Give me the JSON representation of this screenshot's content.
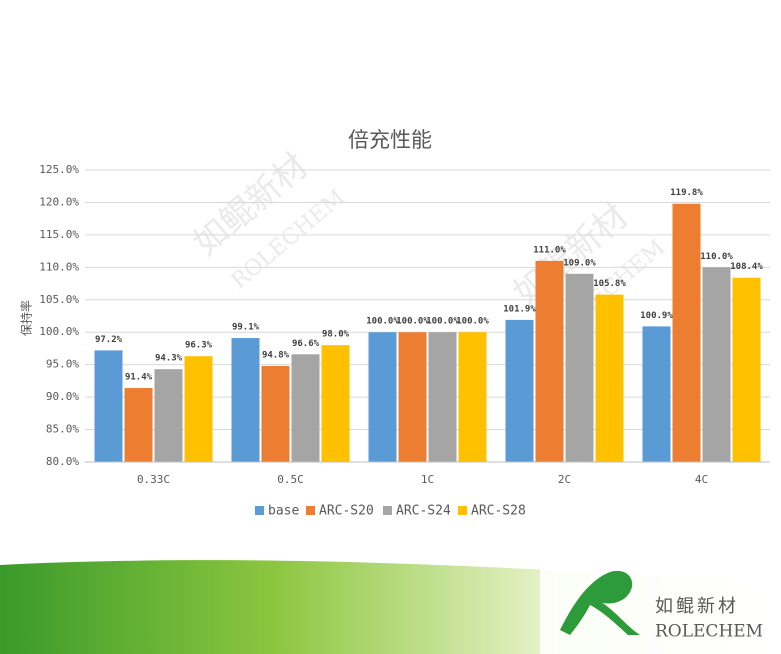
{
  "chart_data": {
    "type": "bar",
    "title": "倍充性能",
    "y_label": "保持率",
    "categories": [
      "0.33C",
      "0.5C",
      "1C",
      "2C",
      "4C"
    ],
    "series": [
      {
        "name": "base",
        "color": "#5b9bd5",
        "values": [
          97.2,
          99.1,
          100.0,
          101.9,
          100.9
        ],
        "value_labels": [
          "97.2%",
          "99.1%",
          "100.0%",
          "101.9%",
          "100.9%"
        ]
      },
      {
        "name": "ARC-S20",
        "color": "#ed7d31",
        "values": [
          91.4,
          94.8,
          100.0,
          111.0,
          119.8
        ],
        "value_labels": [
          "91.4%",
          "94.8%",
          "100.0%",
          "111.0%",
          "119.8%"
        ]
      },
      {
        "name": "ARC-S24",
        "color": "#a5a5a5",
        "values": [
          94.3,
          96.6,
          100.0,
          109.0,
          110.0
        ],
        "value_labels": [
          "94.3%",
          "96.6%",
          "100.0%",
          "109.0%",
          "110.0%"
        ]
      },
      {
        "name": "ARC-S28",
        "color": "#ffc000",
        "values": [
          96.3,
          98.0,
          100.0,
          105.8,
          108.4
        ],
        "value_labels": [
          "96.3%",
          "98.0%",
          "100.0%",
          "105.8%",
          "108.4%"
        ]
      }
    ],
    "ylim": [
      80,
      125
    ],
    "yticks": [
      {
        "value": 80,
        "label": "80.0%"
      },
      {
        "value": 85,
        "label": "85.0%"
      },
      {
        "value": 90,
        "label": "90.0%"
      },
      {
        "value": 95,
        "label": "95.0%"
      },
      {
        "value": 100,
        "label": "100.0%"
      },
      {
        "value": 105,
        "label": "105.0%"
      },
      {
        "value": 110,
        "label": "110.0%"
      },
      {
        "value": 115,
        "label": "115.0%"
      },
      {
        "value": 120,
        "label": "120.0%"
      },
      {
        "value": 125,
        "label": "125.0%"
      }
    ],
    "grid": true,
    "legend": "bottom"
  },
  "branding": {
    "name": "如鲲新材",
    "latin": "ROLECHEM"
  }
}
